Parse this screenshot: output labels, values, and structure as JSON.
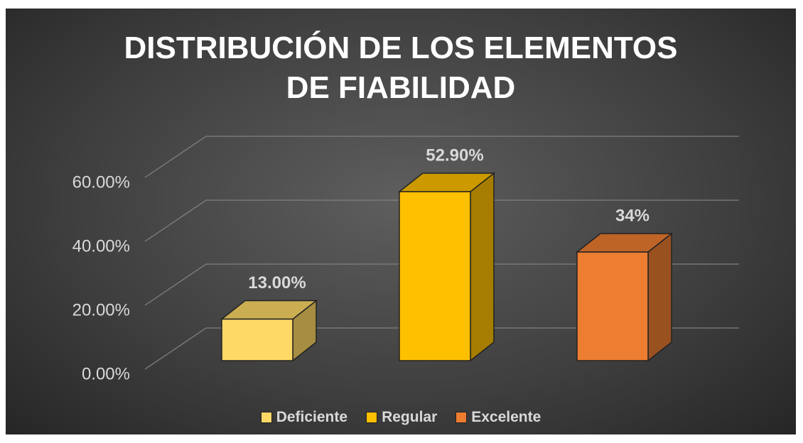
{
  "chart_data": {
    "type": "bar3d",
    "title": "DISTRIBUCIÓN DE LOS ELEMENTOS DE FIABILIDAD",
    "categories": [
      "Deficiente",
      "Regular",
      "Excelente"
    ],
    "values": [
      13,
      52.9,
      34
    ],
    "value_labels": [
      "13.00%",
      "52.90%",
      "34%"
    ],
    "colors": [
      "#ffd966",
      "#ffc000",
      "#ed7d31"
    ],
    "ylim": [
      0,
      60
    ],
    "yticks": [
      {
        "value": 0,
        "label": "0.00%"
      },
      {
        "value": 20,
        "label": "20.00%"
      },
      {
        "value": 40,
        "label": "40.00%"
      },
      {
        "value": 60,
        "label": "60.00%"
      }
    ],
    "grid": true,
    "legend": "bottom"
  }
}
